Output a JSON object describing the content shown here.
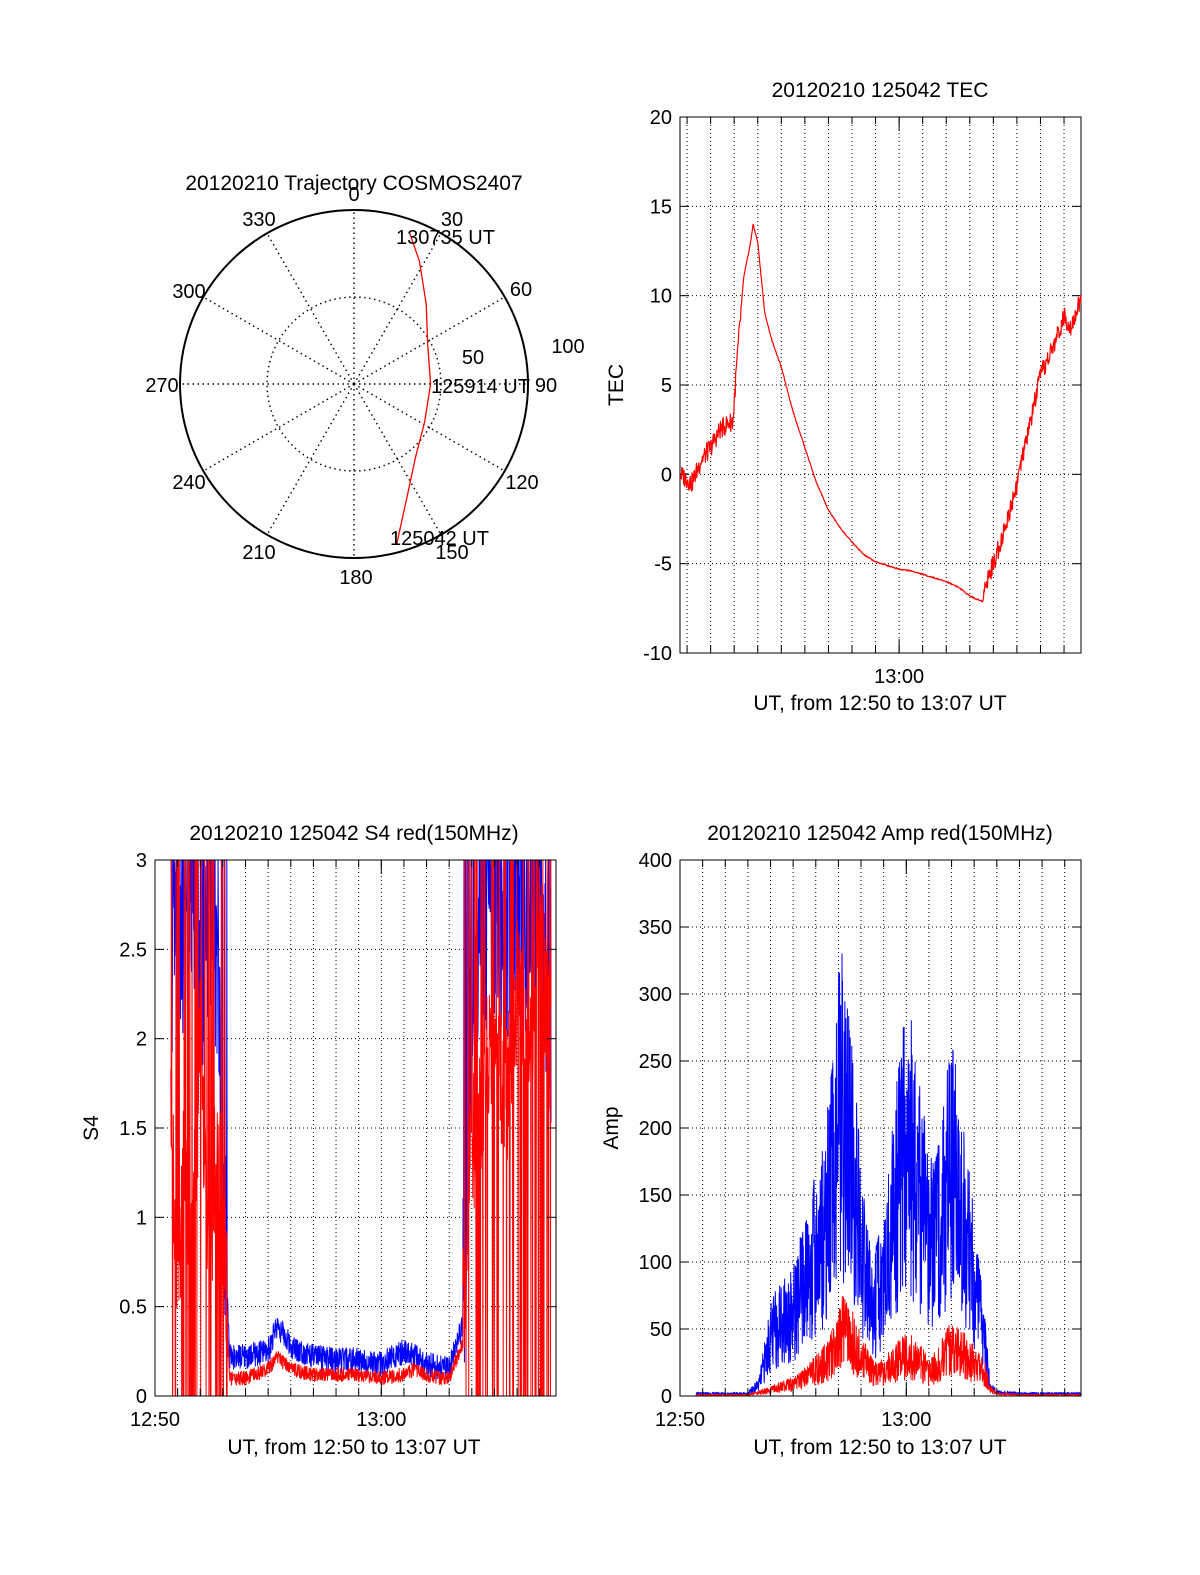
{
  "chart_data": [
    {
      "type": "polar",
      "title": "20120210 Trajectory COSMOS2407",
      "angle_labels": [
        "0",
        "30",
        "60",
        "90",
        "120",
        "150",
        "180",
        "210",
        "240",
        "270",
        "300",
        "330"
      ],
      "radius_labels": [
        "50",
        "100"
      ],
      "rlim": [
        0,
        100
      ],
      "grid": true,
      "start_label": "125042 UT",
      "mid_label": "125914 UT",
      "end_label": "130735 UT",
      "series": [
        {
          "color": "#ff0000",
          "points": [
            {
              "az": 165,
              "r": 95
            },
            {
              "az": 155,
              "r": 72
            },
            {
              "az": 140,
              "r": 55
            },
            {
              "az": 118,
              "r": 46
            },
            {
              "az": 90,
              "r": 44
            },
            {
              "az": 62,
              "r": 48
            },
            {
              "az": 42,
              "r": 62
            },
            {
              "az": 28,
              "r": 80
            },
            {
              "az": 20,
              "r": 93
            }
          ]
        }
      ]
    },
    {
      "type": "line",
      "title": "20120210 125042 TEC",
      "xlabel": "UT, from 12:50 to 13:07 UT",
      "ylabel": "TEC",
      "xlim": [
        0.7,
        17.72
      ],
      "ylim": [
        -10,
        20
      ],
      "yticks": [
        -10,
        -5,
        0,
        5,
        10,
        15,
        20
      ],
      "xticks": [
        {
          "at": 10,
          "label": "13:00"
        }
      ],
      "grid": true,
      "series": [
        {
          "color": "#ff0000",
          "x": [
            0.72,
            1.2,
            1.6,
            2.0,
            2.4,
            2.7,
            2.95,
            3.1,
            3.4,
            3.7,
            3.8,
            4.0,
            4.3,
            4.6,
            5.0,
            5.5,
            6.0,
            6.5,
            7.0,
            7.5,
            8.0,
            8.5,
            9.0,
            9.5,
            10.0,
            10.5,
            11.0,
            11.5,
            12.0,
            12.5,
            13.0,
            13.3,
            13.55,
            13.7,
            14.0,
            14.5,
            15.0,
            15.5,
            16.0,
            16.5,
            17.0,
            17.3,
            17.72
          ],
          "y": [
            0,
            -0.5,
            0.8,
            1.5,
            2.5,
            2.8,
            3.0,
            6.0,
            11.0,
            13.0,
            14.0,
            13.0,
            9.0,
            7.5,
            6.0,
            3.5,
            1.5,
            -0.5,
            -2.0,
            -3.0,
            -3.8,
            -4.5,
            -4.9,
            -5.1,
            -5.3,
            -5.4,
            -5.6,
            -5.8,
            -6.0,
            -6.3,
            -6.8,
            -7.0,
            -7.1,
            -6.0,
            -5.0,
            -3.0,
            -0.5,
            2.5,
            5.5,
            7.0,
            8.8,
            8.3,
            9.8
          ]
        }
      ]
    },
    {
      "type": "line",
      "title": "20120210 125042 S4 red(150MHz)",
      "xlabel": "UT, from 12:50 to 13:07 UT",
      "ylabel": "S4",
      "xlim": [
        0,
        17.72
      ],
      "ylim": [
        0,
        3
      ],
      "yticks": [
        "0",
        "0.5",
        "1",
        "1.5",
        "2",
        "2.5",
        "3"
      ],
      "xticks": [
        {
          "at": 0,
          "label": "12:50"
        },
        {
          "at": 10,
          "label": "13:00"
        }
      ],
      "grid": true,
      "series": [
        {
          "color": "#0000ff",
          "x": [
            0.7,
            1.0,
            1.3,
            1.6,
            2.0,
            2.4,
            2.7,
            3.0,
            3.3,
            4.0,
            5.0,
            5.4,
            6.0,
            7.0,
            8.0,
            9.0,
            10.0,
            11.0,
            11.5,
            12.0,
            12.5,
            13.0,
            13.6,
            14.0,
            14.5,
            15.0,
            15.5,
            16.0,
            16.5,
            17.0,
            17.5
          ],
          "y": [
            2.0,
            2.6,
            2.3,
            2.8,
            2.2,
            2.7,
            2.4,
            1.2,
            0.22,
            0.22,
            0.25,
            0.4,
            0.28,
            0.22,
            0.2,
            0.2,
            0.18,
            0.25,
            0.22,
            0.18,
            0.16,
            0.15,
            0.4,
            2.0,
            2.5,
            2.6,
            2.4,
            2.8,
            2.3,
            2.7,
            2.0
          ]
        },
        {
          "color": "#ff0000",
          "x": [
            0.7,
            1.0,
            1.3,
            1.6,
            2.0,
            2.4,
            2.7,
            3.0,
            3.3,
            4.0,
            5.0,
            5.4,
            6.0,
            7.0,
            8.0,
            9.0,
            10.0,
            11.0,
            11.5,
            12.0,
            12.5,
            13.0,
            13.6,
            14.0,
            14.5,
            15.0,
            15.5,
            16.0,
            16.5,
            17.0,
            17.5
          ],
          "y": [
            1.5,
            0.3,
            1.2,
            0.5,
            1.8,
            0.4,
            1.3,
            0.8,
            0.1,
            0.1,
            0.15,
            0.22,
            0.15,
            0.12,
            0.12,
            0.12,
            0.1,
            0.12,
            0.15,
            0.12,
            0.1,
            0.1,
            0.3,
            1.2,
            1.5,
            1.9,
            1.4,
            2.1,
            1.6,
            2.4,
            1.7
          ]
        }
      ]
    },
    {
      "type": "line",
      "title": "20120210 125042 Amp red(150MHz)",
      "xlabel": "UT, from 12:50 to 13:07 UT",
      "ylabel": "Amp",
      "xlim": [
        0,
        17.72
      ],
      "ylim": [
        0,
        400
      ],
      "yticks": [
        0,
        50,
        100,
        150,
        200,
        250,
        300,
        350,
        400
      ],
      "xticks": [
        {
          "at": 0,
          "label": "12:50"
        },
        {
          "at": 10,
          "label": "13:00"
        }
      ],
      "grid": true,
      "series": [
        {
          "color": "#0000ff",
          "x": [
            0.7,
            2.0,
            3.0,
            3.5,
            4.0,
            4.5,
            5.0,
            5.5,
            6.0,
            6.5,
            7.0,
            7.2,
            7.5,
            7.8,
            8.0,
            8.5,
            9.0,
            9.5,
            10.0,
            10.5,
            11.0,
            11.5,
            12.0,
            12.5,
            13.0,
            13.5,
            13.7,
            14.0,
            15.0,
            16.0,
            17.0,
            17.7
          ],
          "y": [
            2,
            2,
            2,
            10,
            50,
            65,
            70,
            95,
            120,
            150,
            230,
            240,
            200,
            160,
            120,
            75,
            95,
            160,
            210,
            190,
            120,
            155,
            190,
            155,
            100,
            40,
            8,
            3,
            2,
            2,
            2,
            2
          ]
        },
        {
          "color": "#ff0000",
          "x": [
            0.7,
            2.0,
            3.0,
            3.5,
            4.0,
            4.5,
            5.0,
            5.5,
            6.0,
            6.5,
            7.0,
            7.2,
            7.5,
            7.8,
            8.0,
            8.5,
            9.0,
            9.5,
            10.0,
            10.5,
            11.0,
            11.5,
            12.0,
            12.5,
            13.0,
            13.5,
            13.7,
            14.0,
            15.0,
            16.0,
            17.0,
            17.7
          ],
          "y": [
            1,
            1,
            1,
            3,
            5,
            8,
            10,
            15,
            22,
            30,
            45,
            58,
            50,
            40,
            32,
            22,
            20,
            28,
            35,
            30,
            20,
            30,
            40,
            35,
            28,
            18,
            6,
            2,
            1,
            1,
            1,
            1
          ]
        }
      ]
    }
  ]
}
